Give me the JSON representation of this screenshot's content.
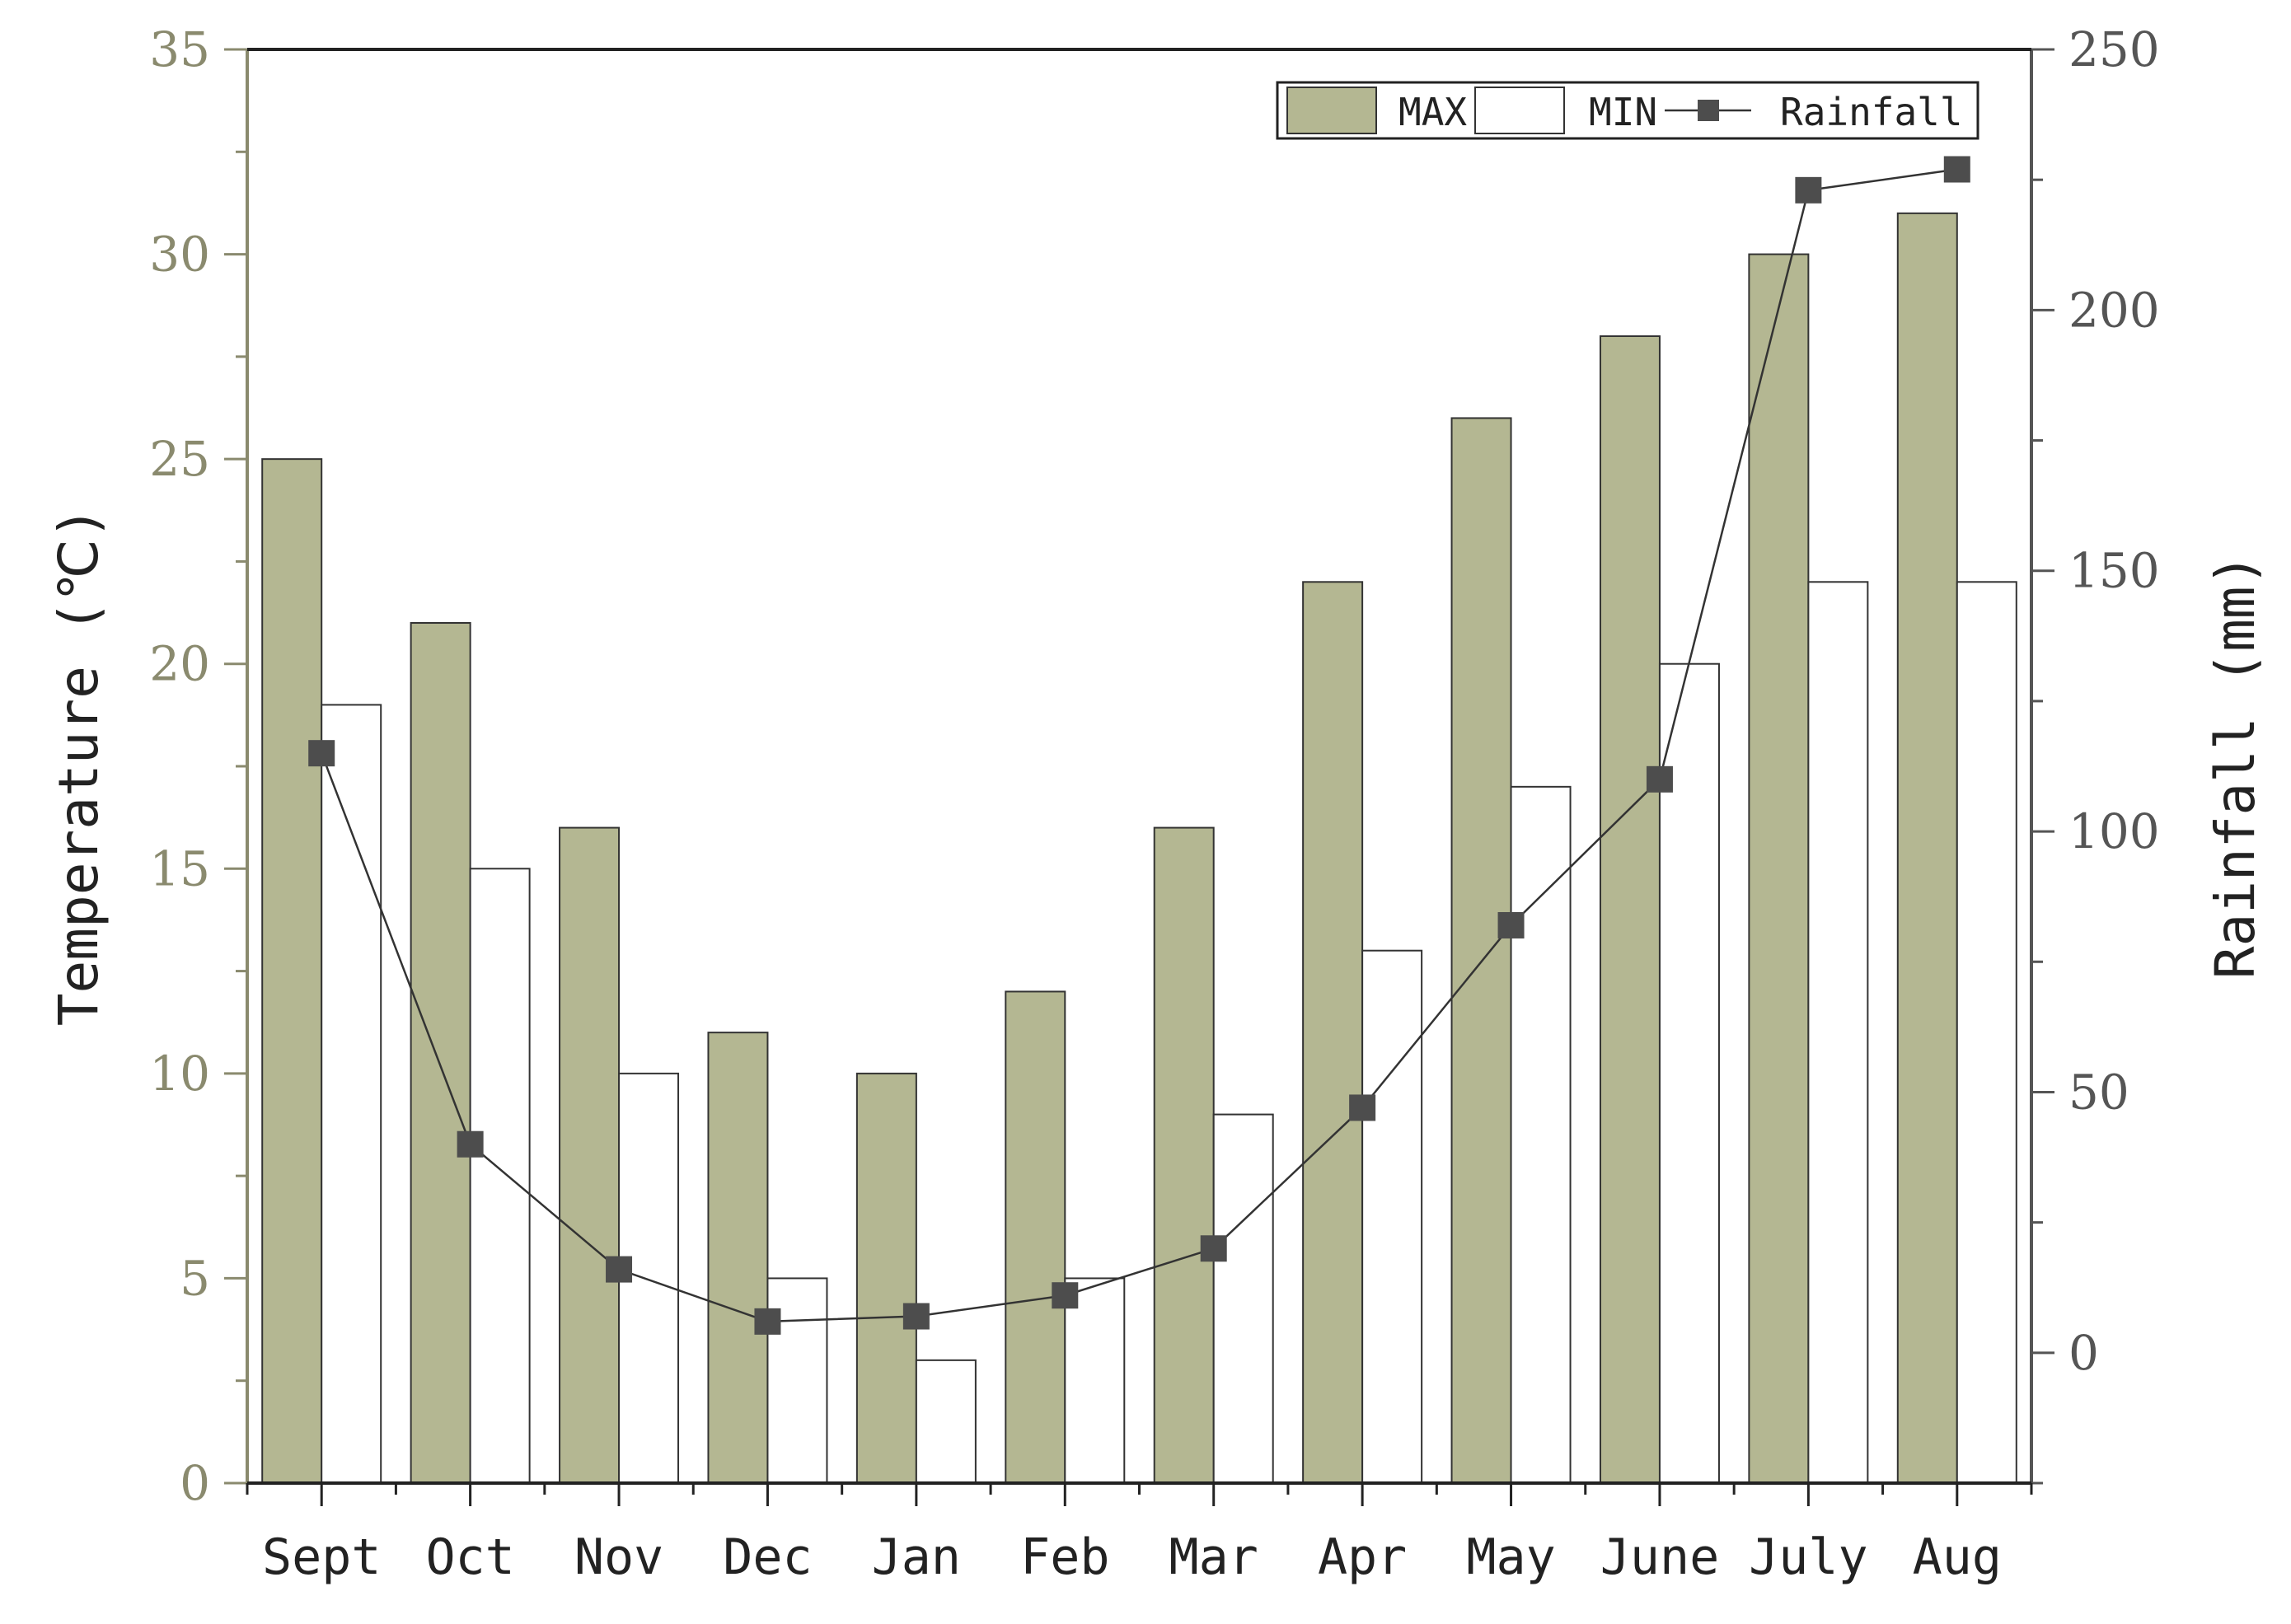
{
  "chart_data": {
    "type": "bar",
    "categories": [
      "Sept",
      "Oct",
      "Nov",
      "Dec",
      "Jan",
      "Feb",
      "Mar",
      "Apr",
      "May",
      "June",
      "July",
      "Aug"
    ],
    "series": [
      {
        "name": "MAX",
        "type": "bar",
        "axis": "left",
        "values": [
          25,
          21,
          16,
          11,
          10,
          12,
          16,
          22,
          26,
          28,
          30,
          31
        ]
      },
      {
        "name": "MIN",
        "type": "bar",
        "axis": "left",
        "values": [
          19,
          15,
          10,
          5,
          3,
          5,
          9,
          13,
          17,
          20,
          22,
          22
        ]
      },
      {
        "name": "Rainfall",
        "type": "line",
        "axis": "right",
        "values": [
          115,
          40,
          16,
          6,
          7,
          11,
          20,
          47,
          82,
          110,
          223,
          227
        ]
      }
    ],
    "ylabel": "Temperature (℃)",
    "y2label": "Rainfall (mm)",
    "xlabel": "",
    "ylim": [
      0,
      35
    ],
    "y2lim": [
      -25,
      250
    ],
    "yticks": [
      "0",
      "5",
      "10",
      "15",
      "20",
      "25",
      "30",
      "35"
    ],
    "y2ticks": [
      "0",
      "50",
      "100",
      "150",
      "200",
      "250"
    ],
    "legend_position": "top-right",
    "grid": false,
    "colors": {
      "max_bar": "#b4b792",
      "min_bar": "#ffffff",
      "line": "#333333",
      "marker": "#4d4d4d",
      "left_axis": "#8a8a6e",
      "right_axis": "#555555"
    }
  }
}
